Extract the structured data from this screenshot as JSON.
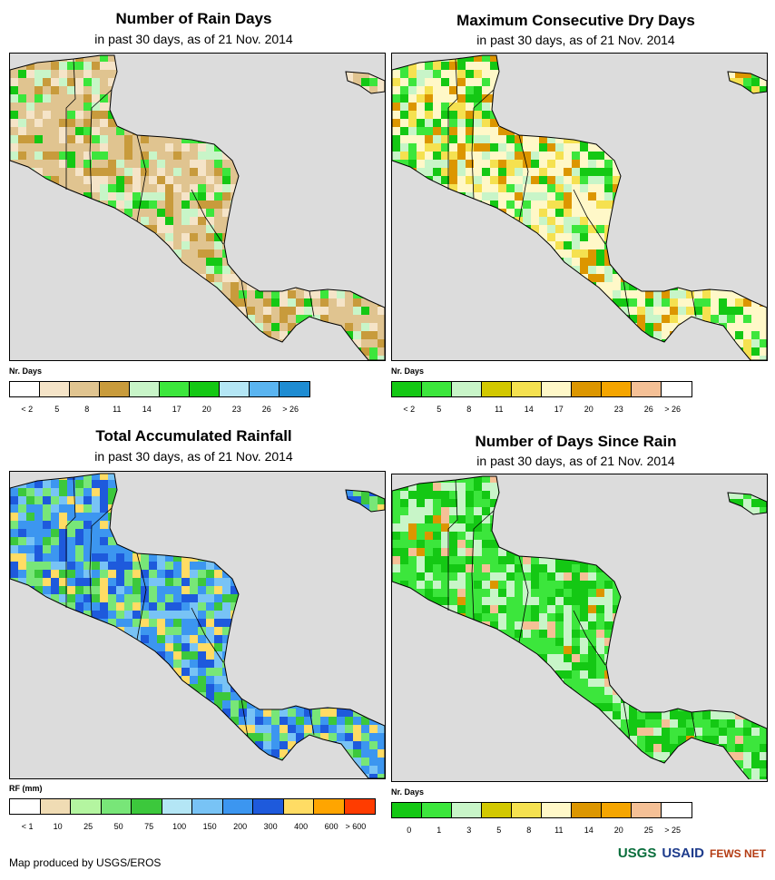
{
  "panels": [
    {
      "title": "Number of Rain Days",
      "subtitle": "in past 30 days, as of 21 Nov. 2014",
      "legend_title": "Nr. Days",
      "legend_colors": [
        "#ffffff",
        "#f5e4c8",
        "#e0c490",
        "#c89b3c",
        "#c8f5c8",
        "#3ce63c",
        "#14c814",
        "#b4e6f5",
        "#5ab4f0",
        "#1e8cd2"
      ],
      "legend_labels": [
        "< 2",
        "5",
        "8",
        "11",
        "14",
        "17",
        "20",
        "23",
        "26",
        "> 26"
      ]
    },
    {
      "title": "Maximum Consecutive Dry Days",
      "subtitle": "in past 30 days, as of 21 Nov. 2014",
      "legend_title": "Nr. Days",
      "legend_colors": [
        "#14c814",
        "#3ce63c",
        "#c8f5c8",
        "#d2c800",
        "#f5e150",
        "#fff8c8",
        "#dc9600",
        "#f5a500",
        "#f5c096",
        "#ffffff"
      ],
      "legend_labels": [
        "< 2",
        "5",
        "8",
        "11",
        "14",
        "17",
        "20",
        "23",
        "26",
        "> 26"
      ]
    },
    {
      "title": "Total Accumulated Rainfall",
      "subtitle": "in past 30 days, as of 21 Nov. 2014",
      "legend_title": "RF (mm)",
      "legend_colors": [
        "#ffffff",
        "#f0dcb4",
        "#b4f5a0",
        "#78e678",
        "#3cc83c",
        "#b4e6f5",
        "#78c3f5",
        "#3c96f0",
        "#1e5adc",
        "#ffdc64",
        "#ffa500",
        "#ff3c00"
      ],
      "legend_labels": [
        "< 1",
        "10",
        "25",
        "50",
        "75",
        "100",
        "150",
        "200",
        "300",
        "400",
        "600",
        "> 600"
      ]
    },
    {
      "title": "Number of Days Since Rain",
      "subtitle": "in past 30 days, as of 21 Nov. 2014",
      "legend_title": "Nr. Days",
      "legend_colors": [
        "#14c814",
        "#3ce63c",
        "#c8f5c8",
        "#d2c800",
        "#f5e150",
        "#fff8c8",
        "#dc9600",
        "#f5a500",
        "#f5c096",
        "#ffffff"
      ],
      "legend_labels": [
        "0",
        "1",
        "3",
        "5",
        "8",
        "11",
        "14",
        "20",
        "25",
        "> 25"
      ]
    }
  ],
  "footer": "Map produced by USGS/EROS",
  "logos": [
    "USGS",
    "USAID",
    "FEWS NET"
  ]
}
